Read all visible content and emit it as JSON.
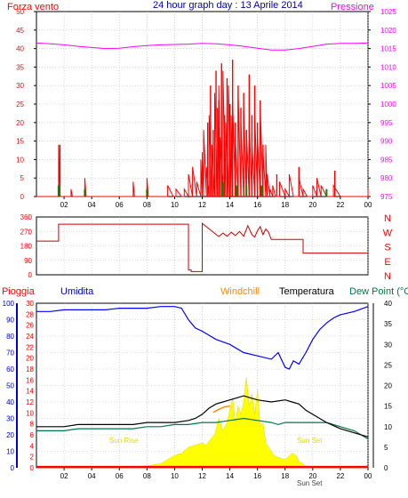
{
  "colors": {
    "wind": "#ff0000",
    "wind_dark": "#990000",
    "pressure": "#ff00ff",
    "direction": "#cc0000",
    "humidity": "#0000cc",
    "humidity_line": "#0000ff",
    "windchill": "#ff8800",
    "temperature": "#000000",
    "dewpoint": "#007744",
    "rain": "#ff0000",
    "solar": "#ffff00",
    "grid": "#bbbbbb",
    "axis": "#000000",
    "sun": "#dddd00"
  },
  "chart_data": [
    {
      "type": "line",
      "title": "24 hour graph day : 13 Aprile 2014",
      "left_label": "Forza vento",
      "right_label": "Pressione",
      "x_ticks": [
        "02",
        "04",
        "06",
        "08",
        "10",
        "12",
        "14",
        "16",
        "18",
        "20",
        "22",
        "00"
      ],
      "y_left_ticks": [
        "0",
        "5",
        "10",
        "15",
        "20",
        "25",
        "30",
        "35",
        "40",
        "45",
        "50"
      ],
      "y_right_ticks": [
        "975",
        "980",
        "985",
        "990",
        "995",
        "1000",
        "1005",
        "1010",
        "1015",
        "1020",
        "1025"
      ],
      "ylim_left": [
        0,
        50
      ],
      "ylim_right": [
        975,
        1025
      ],
      "xlim": [
        0,
        24
      ],
      "series": [
        {
          "name": "Pressione",
          "x": [
            0,
            1,
            2,
            3,
            4,
            5,
            6,
            7,
            8,
            9,
            10,
            11,
            12,
            13,
            14,
            15,
            16,
            17,
            18,
            19,
            20,
            21,
            22,
            23,
            24
          ],
          "values": [
            1016.5,
            1016.3,
            1016.0,
            1015.6,
            1015.3,
            1015.0,
            1015.1,
            1015.5,
            1015.8,
            1016.0,
            1016.1,
            1016.2,
            1016.4,
            1016.3,
            1016.0,
            1015.6,
            1015.1,
            1014.6,
            1014.6,
            1015.0,
            1015.6,
            1016.2,
            1016.4,
            1016.4,
            1016.5
          ]
        },
        {
          "name": "Forza vento",
          "x": [
            0,
            0.8,
            1.5,
            1.6,
            1.7,
            2.4,
            2.5,
            2.6,
            3.4,
            3.5,
            3.6,
            4.4,
            6.9,
            7.0,
            7.1,
            7.9,
            8.0,
            8.1,
            9.0,
            9.5,
            9.9,
            10.0,
            10.1,
            10.5,
            10.7,
            11.0,
            11.3,
            11.6,
            11.9,
            12.0,
            12.1,
            12.3,
            12.5,
            12.7,
            12.9,
            13.1,
            13.2,
            13.3,
            13.5,
            13.7,
            13.9,
            14.1,
            14.2,
            14.4,
            14.6,
            14.8,
            15.0,
            15.2,
            15.4,
            15.6,
            15.8,
            16.0,
            16.2,
            16.4,
            16.6,
            16.7,
            16.9,
            17.1,
            17.3,
            17.6,
            18.0,
            18.3,
            18.6,
            19.0,
            19.3,
            19.6,
            20.0,
            20.3,
            20.6,
            21.0,
            21.5,
            22.0,
            22.5,
            23.0,
            23.5,
            24.0
          ],
          "values": [
            0,
            0,
            0,
            14,
            0,
            0,
            2,
            0,
            0,
            5,
            0,
            0,
            0,
            4,
            0,
            0,
            5,
            0,
            0,
            3,
            0,
            0,
            2,
            0,
            2,
            6,
            8,
            4,
            10,
            12,
            18,
            8,
            22,
            14,
            28,
            24,
            30,
            16,
            34,
            20,
            30,
            22,
            26,
            16,
            28,
            20,
            24,
            18,
            20,
            14,
            22,
            16,
            24,
            12,
            14,
            6,
            2,
            3,
            0,
            4,
            2,
            6,
            0,
            5,
            2,
            0,
            3,
            5,
            3,
            0,
            3,
            0,
            0,
            0,
            0,
            2
          ]
        }
      ]
    },
    {
      "type": "line",
      "title": "",
      "right_axis": [
        "N",
        "W",
        "S",
        "E",
        "N"
      ],
      "y_left_ticks": [
        "0",
        "90",
        "180",
        "270",
        "360"
      ],
      "ylim": [
        0,
        360
      ],
      "xlim": [
        0,
        24
      ],
      "series": [
        {
          "name": "",
          "x": [
            0.0,
            1.6,
            1.6,
            11.0,
            11.0,
            11.2,
            11.2,
            12.0,
            12.0,
            13.2,
            13.5,
            13.8,
            14.1,
            14.4,
            14.7,
            15.0,
            15.3,
            15.6,
            15.8,
            16.0,
            16.2,
            16.4,
            16.6,
            16.8,
            17.0,
            19.3,
            19.3,
            24.0
          ],
          "values": [
            210,
            210,
            315,
            315,
            30,
            30,
            20,
            20,
            320,
            238,
            260,
            240,
            265,
            245,
            270,
            240,
            305,
            250,
            235,
            275,
            300,
            250,
            285,
            265,
            220,
            220,
            135,
            135
          ]
        }
      ]
    },
    {
      "type": "line",
      "title": "",
      "top_labels": [
        "Pioggia",
        "Umidita",
        "Windchill",
        "Temperatura",
        "Dew Point (°C"
      ],
      "y_rain_ticks": [
        "0",
        "2",
        "4",
        "6",
        "8",
        "10",
        "12",
        "14",
        "16",
        "18",
        "20",
        "22",
        "24",
        "26",
        "28",
        "30"
      ],
      "y_humidity_ticks": [
        "0",
        "10",
        "20",
        "30",
        "40",
        "50",
        "60",
        "70",
        "80",
        "90",
        "100"
      ],
      "y_temp_ticks": [
        "0",
        "5",
        "10",
        "15",
        "20",
        "25",
        "30",
        "35",
        "40"
      ],
      "ylim_rain": [
        0,
        30
      ],
      "ylim_humidity": [
        0,
        100
      ],
      "ylim_temp": [
        0,
        40
      ],
      "xlim": [
        0,
        24
      ],
      "x_ticks": [
        "02",
        "04",
        "06",
        "08",
        "10",
        "12",
        "14",
        "16",
        "18",
        "20",
        "22",
        "00"
      ],
      "annotations": [
        "Sun Rise",
        "Sun Set",
        "Sun Set"
      ],
      "series": [
        {
          "name": "Umidita",
          "x": [
            0,
            1,
            2,
            3,
            4,
            5,
            6,
            7,
            8,
            9,
            10,
            10.5,
            11,
            11.5,
            12,
            13,
            14,
            15,
            16,
            17,
            17.5,
            18,
            18.3,
            18.6,
            19,
            19.5,
            20,
            20.5,
            21,
            21.5,
            22,
            23,
            24
          ],
          "values": [
            95,
            95,
            96,
            96,
            96,
            96,
            97,
            97,
            97,
            98,
            98,
            97,
            90,
            85,
            83,
            78,
            75,
            70,
            68,
            66,
            70,
            61,
            60,
            65,
            63,
            70,
            78,
            84,
            88,
            91,
            93,
            95,
            98
          ]
        },
        {
          "name": "Temperatura",
          "x": [
            0,
            1,
            2,
            3,
            4,
            5,
            6,
            7,
            8,
            9,
            10,
            11,
            11.5,
            12,
            12.5,
            13,
            13.5,
            14,
            14.5,
            15,
            15.5,
            16,
            17,
            18,
            18.5,
            19,
            19.5,
            20,
            20.5,
            21,
            22,
            23,
            24
          ],
          "values": [
            10,
            10,
            10,
            10.5,
            10.5,
            10.5,
            10.5,
            10.5,
            11,
            11,
            11,
            11.5,
            12,
            13,
            14.5,
            15.5,
            16,
            16.5,
            17,
            17.5,
            17,
            16.5,
            16,
            16.5,
            16,
            15.5,
            14,
            13,
            12,
            11,
            9.5,
            8.5,
            7.5
          ]
        },
        {
          "name": "Dew Point (°C",
          "x": [
            0,
            1,
            2,
            3,
            4,
            5,
            6,
            7,
            8,
            9,
            10,
            11,
            12,
            13,
            14,
            15,
            16,
            17,
            17.5,
            18,
            19,
            20,
            21,
            22,
            23,
            24
          ],
          "values": [
            9,
            9,
            9,
            9.5,
            9.5,
            9.5,
            9.5,
            9.5,
            10,
            10,
            10.5,
            10.5,
            11,
            11,
            11.5,
            12,
            11.5,
            11,
            10.5,
            11,
            11,
            11,
            11,
            10,
            9,
            7
          ]
        },
        {
          "name": "Windchill",
          "x": [
            12.8,
            13.2,
            13.6,
            14.0
          ],
          "values": [
            13.5,
            14.2,
            14.8,
            15.0
          ]
        },
        {
          "name": "Solar",
          "x": [
            0,
            6.9,
            7.0,
            8,
            9,
            9.5,
            10,
            10.5,
            11,
            11.5,
            12,
            12.3,
            12.6,
            12.9,
            13.2,
            13.5,
            13.8,
            14.0,
            14.2,
            14.4,
            14.6,
            14.8,
            15.0,
            15.2,
            15.4,
            15.6,
            15.8,
            16.0,
            16.2,
            16.4,
            16.6,
            16.8,
            17.0,
            17.2,
            17.5,
            18.0,
            18.5,
            18.8,
            19.0,
            19.3,
            19.6,
            24
          ],
          "values": [
            0,
            0,
            0.2,
            0.5,
            1,
            2,
            3,
            3.5,
            5,
            5.5,
            6,
            5.5,
            7,
            8,
            12,
            9,
            11,
            14,
            17,
            11,
            15,
            13,
            16,
            22,
            15,
            18,
            13,
            19,
            10,
            11,
            6,
            5,
            4,
            3,
            2.5,
            2,
            3.5,
            3,
            1.5,
            1,
            0,
            0
          ]
        },
        {
          "name": "Pioggia",
          "x": [
            0,
            24
          ],
          "values": [
            0.15,
            0.15
          ]
        }
      ]
    }
  ],
  "wind_gust_bars": [
    {
      "x": 12.4,
      "v": 20
    },
    {
      "x": 12.6,
      "v": 30
    },
    {
      "x": 12.8,
      "v": 18
    },
    {
      "x": 13.0,
      "v": 34
    },
    {
      "x": 13.2,
      "v": 26
    },
    {
      "x": 13.4,
      "v": 36
    },
    {
      "x": 13.6,
      "v": 22
    },
    {
      "x": 13.8,
      "v": 32
    },
    {
      "x": 14.0,
      "v": 25
    },
    {
      "x": 14.2,
      "v": 37
    },
    {
      "x": 14.4,
      "v": 20
    },
    {
      "x": 14.6,
      "v": 30
    },
    {
      "x": 14.8,
      "v": 24
    },
    {
      "x": 15.0,
      "v": 28
    },
    {
      "x": 15.2,
      "v": 18
    },
    {
      "x": 15.4,
      "v": 33
    },
    {
      "x": 15.6,
      "v": 22
    },
    {
      "x": 15.8,
      "v": 30
    },
    {
      "x": 16.0,
      "v": 20
    },
    {
      "x": 16.2,
      "v": 26
    },
    {
      "x": 16.4,
      "v": 14
    },
    {
      "x": 1.7,
      "v": 14
    },
    {
      "x": 17.4,
      "v": 6
    },
    {
      "x": 19.0,
      "v": 8
    },
    {
      "x": 21.6,
      "v": 7
    }
  ],
  "wind_green_marks": [
    {
      "x": 1.6,
      "v": 3
    },
    {
      "x": 3.5,
      "v": 2
    },
    {
      "x": 8.0,
      "v": 2
    },
    {
      "x": 13.5,
      "v": 4
    },
    {
      "x": 14.5,
      "v": 3
    },
    {
      "x": 15.2,
      "v": 3
    },
    {
      "x": 16.3,
      "v": 3
    },
    {
      "x": 21.0,
      "v": 2
    }
  ]
}
